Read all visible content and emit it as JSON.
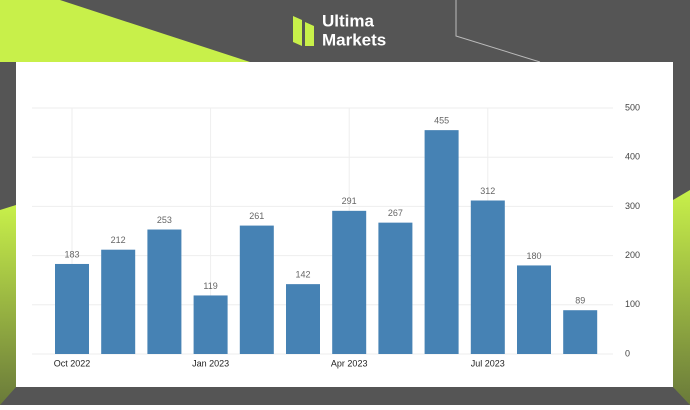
{
  "brand": {
    "line1": "Ultima",
    "line2": "Markets"
  },
  "chart_data": {
    "type": "bar",
    "categories": [
      "Oct 2022",
      null,
      null,
      "Jan 2023",
      null,
      null,
      "Apr 2023",
      null,
      null,
      "Jul 2023",
      null,
      null
    ],
    "values": [
      183,
      212,
      253,
      119,
      261,
      142,
      291,
      267,
      455,
      312,
      180,
      89
    ],
    "color": "#4682b4",
    "ylim": [
      0,
      500
    ],
    "yticks": [
      0,
      100,
      200,
      300,
      400,
      500
    ],
    "grid": true,
    "y_axis_side": "right",
    "data_labels": true
  }
}
